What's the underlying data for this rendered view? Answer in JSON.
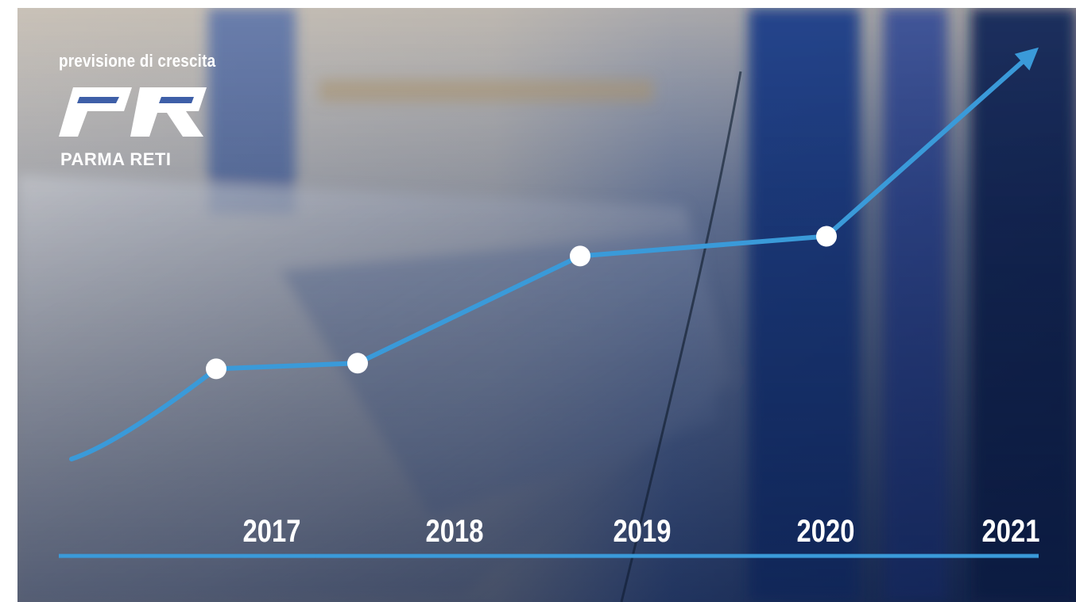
{
  "headline": "previsione di crescita",
  "brand": {
    "name": "PARMA RETI",
    "logo_letters": "PR"
  },
  "colors": {
    "line": "#3a9ad9",
    "marker": "#ffffff",
    "axis": "#3a9ad9",
    "label": "#ffffff"
  },
  "chart_data": {
    "type": "line",
    "categories": [
      "2017",
      "2018",
      "2019",
      "2020",
      "2021"
    ],
    "series": [
      {
        "x": [
          "",
          "2017",
          "2018",
          "2019",
          "2020",
          "2021"
        ],
        "values": [
          0,
          32,
          34,
          72,
          79,
          146
        ]
      }
    ],
    "markers": [
      "2017",
      "2018",
      "2019",
      "2020"
    ],
    "trend_arrow": true,
    "ylim": [
      0,
      150
    ],
    "grid": false,
    "legend": "none"
  }
}
